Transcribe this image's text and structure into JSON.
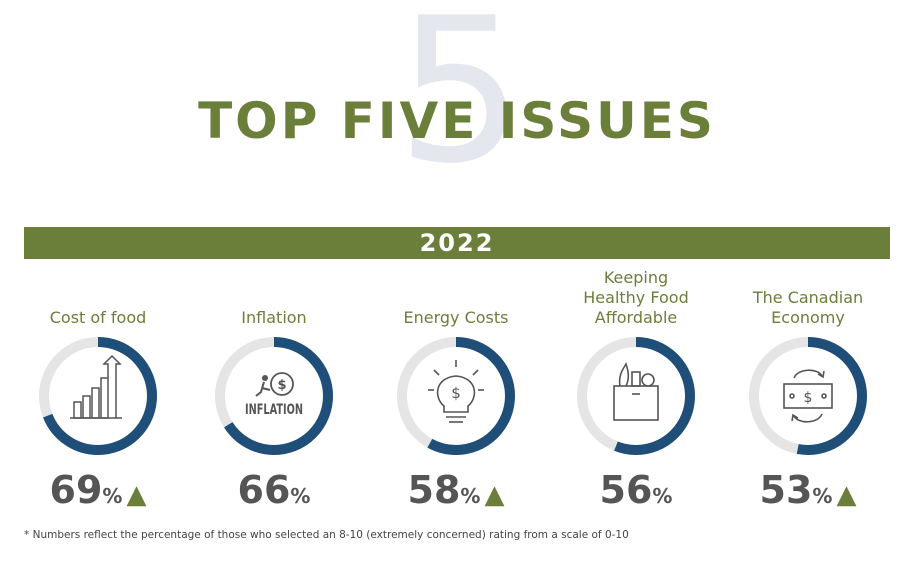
{
  "header": {
    "big_number": "5",
    "title": "TOP FIVE ISSUES"
  },
  "year": "2022",
  "chart_data": {
    "type": "donut",
    "year": "2022",
    "categories": [
      "Cost of food",
      "Inflation",
      "Energy Costs",
      "Keeping Healthy Food Affordable",
      "The Canadian Economy"
    ],
    "values": [
      69,
      66,
      58,
      56,
      53
    ],
    "unit": "%",
    "trend_up": [
      true,
      false,
      true,
      false,
      true
    ],
    "icons": [
      "bar-chart-arrow-icon",
      "inflation-icon",
      "lightbulb-dollar-icon",
      "grocery-bag-icon",
      "money-exchange-icon"
    ]
  },
  "issues": [
    {
      "label": "Cost of food",
      "value": "69",
      "unit": "%",
      "arrow": "▲"
    },
    {
      "label": "Inflation",
      "value": "66",
      "unit": "%",
      "arrow": ""
    },
    {
      "label": "Energy Costs",
      "value": "58",
      "unit": "%",
      "arrow": "▲"
    },
    {
      "label": "Keeping\nHealthy Food\nAffordable",
      "value": "56",
      "unit": "%",
      "arrow": ""
    },
    {
      "label": "The Canadian\nEconomy",
      "value": "53",
      "unit": "%",
      "arrow": "▲"
    }
  ],
  "icon_text": {
    "inflation_word": "INFLATION",
    "dollar": "$"
  },
  "footnote": "* Numbers reflect the percentage of those who selected an 8-10 (extremely concerned) rating from a scale of 0-10",
  "colors": {
    "brand_green": "#6b7f3a",
    "ring_blue": "#1f4e79",
    "ring_gray": "#e5e5e5",
    "number_gray": "#555555"
  }
}
